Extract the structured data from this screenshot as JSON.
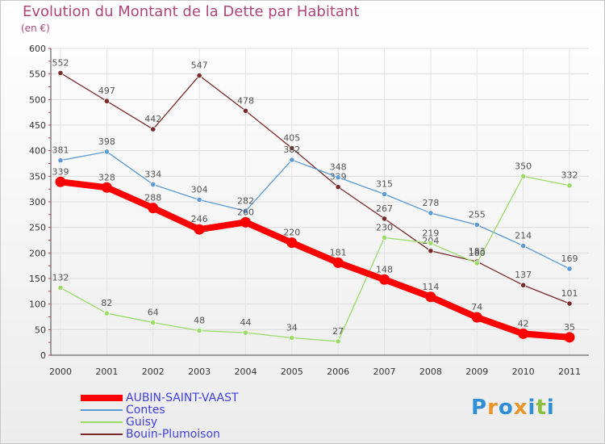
{
  "title": "Evolution du Montant de la Dette par Habitant",
  "unit_label": "(en €)",
  "logo": {
    "letters": [
      {
        "char": "P",
        "color": "#2f8fd6"
      },
      {
        "char": "r",
        "color": "#e8962a"
      },
      {
        "char": "o",
        "color": "#2f8fd6"
      },
      {
        "char": "x",
        "color": "#e8962a"
      },
      {
        "char": "i",
        "color": "#2f8fd6"
      },
      {
        "char": "t",
        "color": "#8cbf3f"
      },
      {
        "char": "i",
        "color": "#2f8fd6"
      }
    ]
  },
  "chart_data": {
    "type": "line",
    "title": "Evolution du Montant de la Dette par Habitant",
    "ylabel": "(en €)",
    "xlabel": "",
    "ylim": [
      0,
      600
    ],
    "y_ticks": [
      0,
      50,
      100,
      150,
      200,
      250,
      300,
      350,
      400,
      450,
      500,
      550,
      600
    ],
    "categories": [
      "2000",
      "2001",
      "2002",
      "2003",
      "2004",
      "2005",
      "2006",
      "2007",
      "2008",
      "2009",
      "2010",
      "2011"
    ],
    "grid": true,
    "legend_position": "bottom-left",
    "series": [
      {
        "name": "Bouin-Plumoison",
        "color": "#7a2a2a",
        "emphasis": false,
        "values": [
          552,
          497,
          442,
          547,
          478,
          405,
          329,
          267,
          204,
          183,
          137,
          101
        ]
      },
      {
        "name": "Contes",
        "color": "#5b9bd5",
        "emphasis": false,
        "values": [
          381,
          398,
          334,
          304,
          282,
          382,
          348,
          315,
          278,
          255,
          214,
          169
        ]
      },
      {
        "name": "Guisy",
        "color": "#99dd66",
        "emphasis": false,
        "values": [
          132,
          82,
          64,
          48,
          44,
          34,
          27,
          230,
          219,
          180,
          350,
          332
        ]
      },
      {
        "name": "AUBIN-SAINT-VAAST",
        "color": "#ff0000",
        "emphasis": true,
        "values": [
          339,
          328,
          288,
          246,
          260,
          220,
          181,
          148,
          114,
          74,
          42,
          35
        ]
      }
    ]
  }
}
